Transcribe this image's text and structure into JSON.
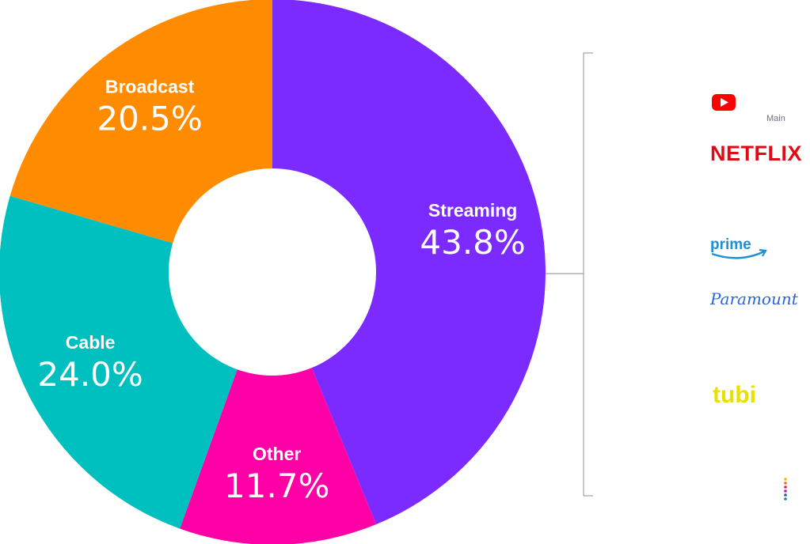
{
  "chart_data": {
    "type": "pie",
    "variant": "donut",
    "slices": [
      {
        "label": "Streaming",
        "value": 43.8,
        "value_label": "43.8%",
        "color": "#7b2bff"
      },
      {
        "label": "Other",
        "value": 11.7,
        "value_label": "11.7%",
        "color": "#ff00a6"
      },
      {
        "label": "Cable",
        "value": 24.0,
        "value_label": "24.0%",
        "color": "#00bfbf"
      },
      {
        "label": "Broadcast",
        "value": 20.5,
        "value_label": "20.5%",
        "color": "#ff8c00"
      }
    ]
  },
  "streaming_breakdown": {
    "bracket_color": "#9ca3af",
    "main_label": "Main",
    "brands": [
      {
        "name": "YouTube",
        "icon": "youtube-logo-icon",
        "color": "#ff0000"
      },
      {
        "name": "NETFLIX",
        "icon": "netflix-logo",
        "color": "#e50914"
      },
      {
        "name": "prime",
        "icon": "prime-video-logo",
        "color": "#1f8fd4"
      },
      {
        "name": "Paramount",
        "icon": "paramount-logo",
        "color": "#2a65d8"
      },
      {
        "name": "tubi",
        "icon": "tubi-logo",
        "color": "#e8e000"
      },
      {
        "name": "",
        "icon": "colored-dots-logo-icon",
        "color": "#e91e63"
      }
    ]
  }
}
